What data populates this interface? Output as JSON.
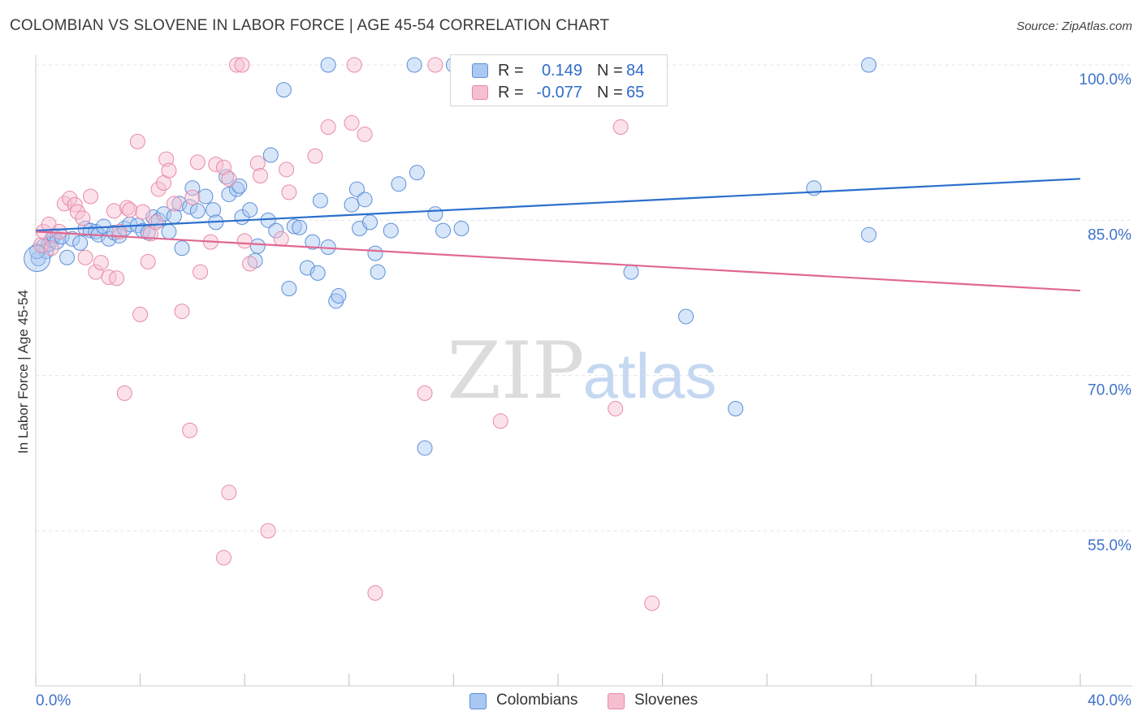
{
  "header": {
    "title": "COLOMBIAN VS SLOVENE IN LABOR FORCE | AGE 45-54 CORRELATION CHART",
    "source": "Source: ZipAtlas.com"
  },
  "watermark": {
    "zip": "ZIP",
    "atlas": "atlas"
  },
  "legend": {
    "rows": [
      {
        "r_label": "R =",
        "r_value": "0.149",
        "n_label": "N =",
        "n_value": "84",
        "color": "#8fb8f0"
      },
      {
        "r_label": "R =",
        "r_value": "-0.077",
        "n_label": "N =",
        "n_value": "65",
        "color": "#f2a3bd"
      }
    ]
  },
  "bottom_legend": {
    "items": [
      "Colombians",
      "Slovenes"
    ]
  },
  "colors": {
    "colombians_fill": "#a9c8f2",
    "colombians_stroke": "#5b8fd8",
    "colombians_line": "#2a6fcc",
    "slovenes_fill": "#f6bfd0",
    "slovenes_stroke": "#e88aa8",
    "slovenes_line": "#e06890",
    "axis_label": "#3e73c9",
    "grid": "#e4e4e4"
  },
  "chart_data": {
    "type": "scatter",
    "title": "COLOMBIAN VS SLOVENE IN LABOR FORCE | AGE 45-54 CORRELATION CHART",
    "xlabel": "",
    "ylabel": "In Labor Force | Age 45-54",
    "xlim": [
      0,
      40
    ],
    "ylim": [
      40,
      102
    ],
    "x_tick_labels": [
      "0.0%",
      "40.0%"
    ],
    "y_ticks": [
      55,
      70,
      85,
      100
    ],
    "y_tick_labels": [
      "55.0%",
      "70.0%",
      "85.0%",
      "100.0%"
    ],
    "grid": true,
    "legend_position": "top-center",
    "series": [
      {
        "name": "Colombians",
        "r": 0.149,
        "n": 84,
        "trend": [
          [
            0,
            84.0
          ],
          [
            40,
            89.0
          ]
        ],
        "points": [
          [
            0.1,
            81.3
          ],
          [
            0.3,
            82.5
          ],
          [
            0.4,
            82.0
          ],
          [
            0.5,
            82.7
          ],
          [
            0.6,
            83.1
          ],
          [
            0.7,
            83.5
          ],
          [
            0.8,
            82.9
          ],
          [
            1.0,
            83.4
          ],
          [
            1.2,
            81.4
          ],
          [
            1.4,
            83.2
          ],
          [
            1.7,
            82.8
          ],
          [
            1.9,
            84.2
          ],
          [
            2.1,
            84.0
          ],
          [
            2.3,
            83.9
          ],
          [
            2.4,
            83.6
          ],
          [
            2.6,
            84.4
          ],
          [
            2.8,
            83.2
          ],
          [
            3.0,
            83.8
          ],
          [
            3.2,
            83.5
          ],
          [
            3.4,
            84.2
          ],
          [
            3.6,
            84.6
          ],
          [
            3.9,
            84.5
          ],
          [
            4.1,
            84.0
          ],
          [
            4.3,
            83.8
          ],
          [
            4.5,
            85.3
          ],
          [
            4.7,
            85.0
          ],
          [
            4.9,
            85.6
          ],
          [
            5.1,
            83.9
          ],
          [
            5.3,
            85.4
          ],
          [
            5.5,
            86.6
          ],
          [
            5.6,
            82.3
          ],
          [
            5.9,
            86.3
          ],
          [
            6.0,
            88.1
          ],
          [
            6.2,
            85.9
          ],
          [
            6.5,
            87.3
          ],
          [
            6.8,
            86.0
          ],
          [
            6.9,
            84.8
          ],
          [
            7.3,
            89.2
          ],
          [
            7.4,
            87.5
          ],
          [
            7.7,
            88.0
          ],
          [
            7.8,
            88.3
          ],
          [
            7.9,
            85.3
          ],
          [
            8.2,
            86.0
          ],
          [
            8.4,
            81.1
          ],
          [
            8.5,
            82.5
          ],
          [
            8.9,
            85.0
          ],
          [
            9.0,
            91.3
          ],
          [
            9.2,
            84.0
          ],
          [
            9.5,
            97.6
          ],
          [
            9.7,
            78.4
          ],
          [
            9.9,
            84.4
          ],
          [
            10.1,
            84.3
          ],
          [
            10.4,
            80.4
          ],
          [
            10.6,
            82.9
          ],
          [
            10.8,
            79.9
          ],
          [
            10.9,
            86.9
          ],
          [
            11.2,
            100.0
          ],
          [
            11.2,
            82.4
          ],
          [
            11.5,
            77.2
          ],
          [
            11.6,
            77.7
          ],
          [
            12.1,
            86.5
          ],
          [
            12.3,
            88.0
          ],
          [
            12.4,
            84.2
          ],
          [
            12.6,
            87.0
          ],
          [
            12.8,
            84.8
          ],
          [
            13.0,
            81.8
          ],
          [
            13.1,
            80.0
          ],
          [
            13.6,
            84.0
          ],
          [
            13.9,
            88.5
          ],
          [
            14.5,
            100.0
          ],
          [
            14.6,
            89.6
          ],
          [
            14.9,
            63.0
          ],
          [
            15.3,
            85.6
          ],
          [
            15.6,
            84.0
          ],
          [
            16.0,
            100.0
          ],
          [
            16.3,
            84.2
          ],
          [
            20.0,
            100.0
          ],
          [
            22.8,
            80.0
          ],
          [
            24.9,
            75.7
          ],
          [
            26.8,
            66.8
          ],
          [
            29.8,
            88.1
          ],
          [
            31.9,
            100.0
          ],
          [
            31.9,
            83.6
          ],
          [
            0.05,
            82.0
          ]
        ]
      },
      {
        "name": "Slovenes",
        "r": -0.077,
        "n": 65,
        "trend": [
          [
            0,
            83.9
          ],
          [
            40,
            78.2
          ]
        ],
        "points": [
          [
            0.2,
            82.6
          ],
          [
            0.3,
            83.9
          ],
          [
            0.5,
            84.6
          ],
          [
            0.6,
            82.3
          ],
          [
            0.9,
            83.9
          ],
          [
            1.1,
            86.6
          ],
          [
            1.3,
            87.1
          ],
          [
            1.5,
            86.5
          ],
          [
            1.6,
            85.8
          ],
          [
            1.8,
            85.2
          ],
          [
            1.9,
            81.4
          ],
          [
            2.1,
            87.3
          ],
          [
            2.3,
            80.0
          ],
          [
            2.5,
            80.9
          ],
          [
            2.8,
            79.5
          ],
          [
            3.0,
            85.9
          ],
          [
            3.1,
            79.4
          ],
          [
            3.2,
            83.9
          ],
          [
            3.4,
            68.3
          ],
          [
            3.5,
            86.2
          ],
          [
            3.6,
            86.0
          ],
          [
            3.9,
            92.6
          ],
          [
            4.0,
            75.9
          ],
          [
            4.1,
            85.8
          ],
          [
            4.3,
            81.0
          ],
          [
            4.4,
            83.7
          ],
          [
            4.6,
            84.8
          ],
          [
            4.7,
            88.0
          ],
          [
            4.9,
            88.6
          ],
          [
            5.0,
            90.9
          ],
          [
            5.1,
            89.8
          ],
          [
            5.3,
            86.6
          ],
          [
            5.6,
            76.2
          ],
          [
            5.9,
            64.7
          ],
          [
            6.0,
            87.2
          ],
          [
            6.2,
            90.6
          ],
          [
            6.3,
            80.0
          ],
          [
            6.7,
            82.9
          ],
          [
            6.9,
            90.4
          ],
          [
            7.2,
            90.1
          ],
          [
            7.4,
            58.7
          ],
          [
            7.2,
            52.4
          ],
          [
            7.4,
            89.0
          ],
          [
            7.7,
            100.0
          ],
          [
            7.9,
            100.0
          ],
          [
            8.0,
            83.0
          ],
          [
            8.2,
            80.8
          ],
          [
            8.5,
            90.5
          ],
          [
            8.6,
            89.3
          ],
          [
            8.9,
            55.0
          ],
          [
            9.4,
            83.2
          ],
          [
            9.6,
            89.9
          ],
          [
            9.7,
            87.7
          ],
          [
            10.7,
            91.2
          ],
          [
            11.2,
            94.0
          ],
          [
            12.1,
            94.4
          ],
          [
            12.2,
            100.0
          ],
          [
            12.6,
            93.3
          ],
          [
            13.0,
            49.0
          ],
          [
            14.9,
            68.3
          ],
          [
            15.3,
            100.0
          ],
          [
            17.8,
            65.6
          ],
          [
            22.2,
            66.8
          ],
          [
            22.4,
            94.0
          ],
          [
            23.6,
            48.0
          ]
        ]
      }
    ]
  }
}
